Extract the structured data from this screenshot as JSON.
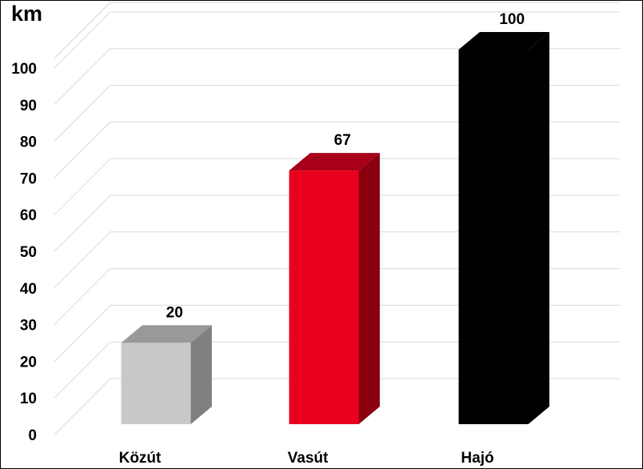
{
  "chart_data": {
    "type": "bar",
    "style": "3d-column",
    "ylabel": "km",
    "categories": [
      "Közút",
      "Vasút",
      "Hajó"
    ],
    "values": [
      20,
      67,
      100
    ],
    "data_labels": [
      "20",
      "67",
      "100"
    ],
    "colors": [
      "#c8c8c8",
      "#e8001e",
      "#000000"
    ],
    "ylim": [
      0,
      100
    ],
    "yticks": [
      "0",
      "10",
      "20",
      "30",
      "40",
      "50",
      "60",
      "70",
      "80",
      "90",
      "100"
    ],
    "grid": true,
    "legend": "none"
  }
}
